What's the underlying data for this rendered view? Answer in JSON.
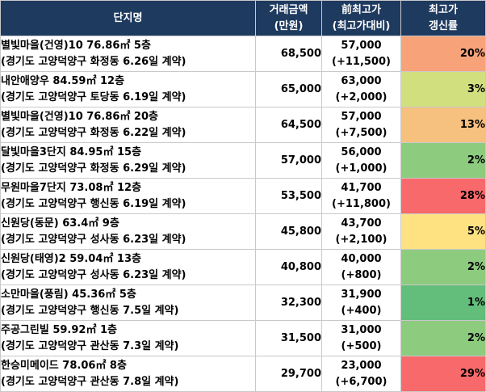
{
  "header": {
    "name": "단지명",
    "price_line1": "거래금액",
    "price_line2": "(만원)",
    "high_line1": "前최고가",
    "high_line2": "(최고가대비)",
    "rate_line1": "최고가",
    "rate_line2": "갱신률"
  },
  "rows": [
    {
      "name": "별빛마을(건영)10 76.86㎡ 5층",
      "location": "(경기도 고양덕양구 화정동 6.26일 계약)",
      "price": "68,500",
      "prev_high": "57,000",
      "diff": "(+11,500)",
      "rate": "20%",
      "color": "#f8a27a"
    },
    {
      "name": "내안애양우 84.59㎡ 12층",
      "location": "(경기도 고양덕양구 토당동 6.19일 계약)",
      "price": "65,000",
      "prev_high": "63,000",
      "diff": "(+2,000)",
      "rate": "3%",
      "color": "#d2df7f"
    },
    {
      "name": "별빛마을(건영)10 76.86㎡ 20층",
      "location": "(경기도 고양덕양구 화정동 6.22일 계약)",
      "price": "64,500",
      "prev_high": "57,000",
      "diff": "(+7,500)",
      "rate": "13%",
      "color": "#f6c07e"
    },
    {
      "name": "달빛마을3단지 84.95㎡ 15층",
      "location": "(경기도 고양덕양구 화정동 6.29일 계약)",
      "price": "57,000",
      "prev_high": "56,000",
      "diff": "(+1,000)",
      "rate": "2%",
      "color": "#8dcb7f"
    },
    {
      "name": "무원마을7단지 73.08㎡ 12층",
      "location": "(경기도 고양덕양구 행신동 6.19일 계약)",
      "price": "53,500",
      "prev_high": "41,700",
      "diff": "(+11,800)",
      "rate": "28%",
      "color": "#f8696b"
    },
    {
      "name": "신원당(동문) 63.4㎡ 9층",
      "location": "(경기도 고양덕양구 성사동 6.23일 계약)",
      "price": "45,800",
      "prev_high": "43,700",
      "diff": "(+2,100)",
      "rate": "5%",
      "color": "#fee282"
    },
    {
      "name": "신원당(태영)2 59.04㎡ 13층",
      "location": "(경기도 고양덕양구 성사동 6.23일 계약)",
      "price": "40,800",
      "prev_high": "40,000",
      "diff": "(+800)",
      "rate": "2%",
      "color": "#8dcb7f"
    },
    {
      "name": "소만마을(풍림) 45.36㎡ 5층",
      "location": "(경기도 고양덕양구 행신동 7.5일 계약)",
      "price": "32,300",
      "prev_high": "31,900",
      "diff": "(+400)",
      "rate": "1%",
      "color": "#63be7b"
    },
    {
      "name": "주공그린빌 59.92㎡ 1층",
      "location": "(경기도 고양덕양구 관산동 7.3일 계약)",
      "price": "31,500",
      "prev_high": "31,000",
      "diff": "(+500)",
      "rate": "2%",
      "color": "#8dcb7f"
    },
    {
      "name": "한승미메이드 78.06㎡ 8층",
      "location": "(경기도 고양덕양구 관산동 7.8일 계약)",
      "price": "29,700",
      "prev_high": "23,000",
      "diff": "(+6,700)",
      "rate": "29%",
      "color": "#f8696b"
    }
  ]
}
